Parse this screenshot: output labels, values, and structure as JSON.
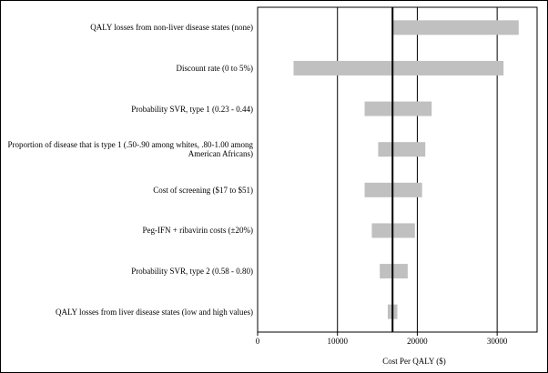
{
  "chart_data": {
    "type": "tornado",
    "x_label": "Cost Per QALY ($)",
    "categories": [
      "QALY losses from non-liver disease states (none)",
      "Discount rate (0 to 5%)",
      "Probability SVR, type 1 (0.23 - 0.44)",
      "Proportion of disease that is type 1 (.50-.90 among whites, .80-1.00 among American Africans)",
      "Cost of screening ($17 to $51)",
      "Peg-IFN + ribavirin costs  (±20%)",
      "Probability SVR, type 2 (0.58 - 0.80)",
      "QALY losses from liver disease states (low and high values)"
    ],
    "low": [
      16900,
      4500,
      13400,
      15100,
      13400,
      14300,
      15300,
      16300
    ],
    "high": [
      32700,
      30800,
      21800,
      21000,
      20600,
      19700,
      18800,
      17500
    ],
    "baseline": 16900,
    "color": "#c0c0c0",
    "xlim": [
      0,
      35000
    ],
    "xticks": [
      0,
      10000,
      20000,
      30000
    ],
    "grid": true
  }
}
